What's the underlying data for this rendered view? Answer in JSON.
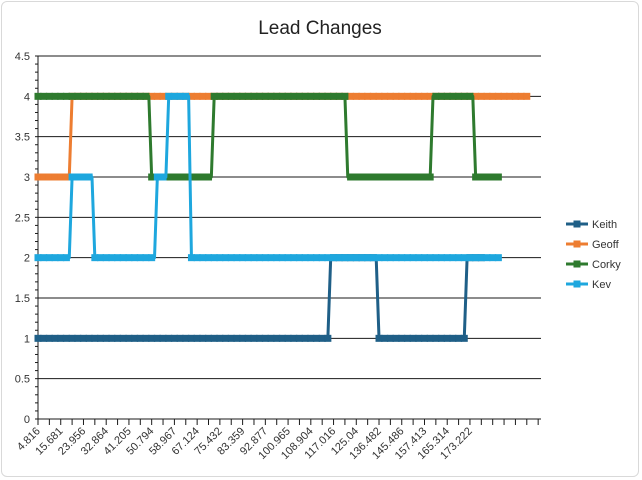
{
  "chart_data": {
    "type": "line",
    "title": "Lead Changes",
    "xlabel": "",
    "ylabel": "",
    "ylim": [
      0,
      4.5
    ],
    "ystep": 0.5,
    "y_ticks": [
      "0",
      "0.5",
      "1",
      "1.5",
      "2",
      "2.5",
      "3",
      "3.5",
      "4",
      "4.5"
    ],
    "x_ticks": [
      "4.816",
      "15.681",
      "23.956",
      "32.864",
      "41.205",
      "50.794",
      "58.967",
      "67.124",
      "75.432",
      "83.359",
      "92.877",
      "100.965",
      "108.904",
      "117.016",
      "125.04",
      "136.482",
      "145.486",
      "157.413",
      "165.314",
      "173.222"
    ],
    "grid": true,
    "legend_position": "right",
    "series": [
      {
        "name": "Keith",
        "color": "#1f5f87",
        "values": [
          1,
          1,
          1,
          1,
          1,
          1,
          1,
          1,
          1,
          1,
          1,
          1,
          1,
          1,
          1,
          1,
          1,
          1,
          1,
          1,
          1,
          1,
          1,
          1,
          1,
          1,
          1,
          1,
          1,
          1,
          1,
          1,
          1,
          1,
          1,
          1,
          1,
          1,
          1,
          1,
          1,
          1,
          1,
          1,
          1,
          1,
          1,
          1,
          1,
          1,
          1,
          1,
          1,
          1,
          1,
          1,
          1,
          1,
          1,
          1,
          1,
          1,
          1,
          1,
          1,
          1,
          1,
          1,
          1,
          1,
          1,
          1,
          1,
          1,
          1,
          1,
          1,
          1,
          1,
          1,
          1,
          1,
          1,
          1,
          1,
          1,
          1,
          1,
          1,
          1,
          1,
          1,
          1,
          1,
          1,
          1,
          1,
          1,
          1,
          1,
          1,
          1,
          1,
          2,
          2,
          2,
          2,
          2,
          2,
          2,
          2,
          2,
          2,
          2,
          2,
          2,
          2,
          2,
          2,
          2,
          1,
          1,
          1,
          1,
          1,
          1,
          1,
          1,
          1,
          1,
          1,
          1,
          1,
          1,
          1,
          1,
          1,
          1,
          1,
          1,
          1,
          1,
          1,
          1,
          1,
          1,
          1,
          1,
          1,
          1,
          1,
          2,
          2,
          2,
          2,
          2,
          2
        ]
      },
      {
        "name": "Geoff",
        "color": "#ed7d31",
        "values": [
          3,
          3,
          3,
          3,
          3,
          3,
          3,
          3,
          3,
          3,
          3,
          3,
          4,
          4,
          4,
          4,
          4,
          4,
          4,
          4,
          4,
          4,
          4,
          4,
          4,
          4,
          4,
          4,
          4,
          4,
          4,
          4,
          4,
          4,
          4,
          4,
          4,
          4,
          4,
          4,
          4,
          4,
          4,
          4,
          4,
          4,
          4,
          4,
          4,
          4,
          4,
          4,
          4,
          4,
          4,
          4,
          4,
          4,
          4,
          4,
          4,
          4,
          4,
          4,
          4,
          4,
          4,
          4,
          4,
          4,
          4,
          4,
          4,
          4,
          4,
          4,
          4,
          4,
          4,
          4,
          4,
          4,
          4,
          4,
          4,
          4,
          4,
          4,
          4,
          4,
          4,
          4,
          4,
          4,
          4,
          4,
          4,
          4,
          4,
          4,
          4,
          4,
          4,
          4,
          4,
          4,
          4,
          4,
          4,
          4,
          4,
          4,
          4,
          4,
          4,
          4,
          4,
          4,
          4,
          4,
          4,
          4,
          4,
          4,
          4,
          4,
          4,
          4,
          4,
          4,
          4,
          4,
          4,
          4,
          4,
          4,
          4,
          4,
          4,
          4,
          4,
          4,
          4,
          4,
          4,
          4,
          4,
          4,
          4,
          4,
          4,
          4,
          4,
          4,
          4,
          4,
          4,
          4,
          4,
          4,
          4,
          4,
          4,
          4,
          4,
          4,
          4,
          4,
          4,
          4,
          4,
          4,
          4,
          4
        ]
      },
      {
        "name": "Corky",
        "color": "#2e7a2e",
        "values": [
          4,
          4,
          4,
          4,
          4,
          4,
          4,
          4,
          4,
          4,
          4,
          4,
          4,
          4,
          4,
          4,
          4,
          4,
          4,
          4,
          4,
          4,
          4,
          4,
          4,
          4,
          4,
          4,
          4,
          4,
          4,
          4,
          4,
          4,
          4,
          4,
          4,
          4,
          4,
          4,
          3,
          3,
          3,
          3,
          3,
          3,
          3,
          3,
          3,
          3,
          3,
          3,
          3,
          3,
          3,
          3,
          3,
          3,
          3,
          3,
          3,
          3,
          4,
          4,
          4,
          4,
          4,
          4,
          4,
          4,
          4,
          4,
          4,
          4,
          4,
          4,
          4,
          4,
          4,
          4,
          4,
          4,
          4,
          4,
          4,
          4,
          4,
          4,
          4,
          4,
          4,
          4,
          4,
          4,
          4,
          4,
          4,
          4,
          4,
          4,
          4,
          4,
          4,
          4,
          4,
          4,
          4,
          4,
          4,
          3,
          3,
          3,
          3,
          3,
          3,
          3,
          3,
          3,
          3,
          3,
          3,
          3,
          3,
          3,
          3,
          3,
          3,
          3,
          3,
          3,
          3,
          3,
          3,
          3,
          3,
          3,
          3,
          3,
          3,
          4,
          4,
          4,
          4,
          4,
          4,
          4,
          4,
          4,
          4,
          4,
          4,
          4,
          4,
          4,
          3,
          3,
          3,
          3,
          3,
          3,
          3,
          3,
          3
        ]
      },
      {
        "name": "Kev",
        "color": "#1ea7de",
        "values": [
          2,
          2,
          2,
          2,
          2,
          2,
          2,
          2,
          2,
          2,
          2,
          2,
          3,
          3,
          3,
          3,
          3,
          3,
          3,
          3,
          2,
          2,
          2,
          2,
          2,
          2,
          2,
          2,
          2,
          2,
          2,
          2,
          2,
          2,
          2,
          2,
          2,
          2,
          2,
          2,
          2,
          2,
          3,
          3,
          3,
          3,
          4,
          4,
          4,
          4,
          4,
          4,
          4,
          4,
          2,
          2,
          2,
          2,
          2,
          2,
          2,
          2,
          2,
          2,
          2,
          2,
          2,
          2,
          2,
          2,
          2,
          2,
          2,
          2,
          2,
          2,
          2,
          2,
          2,
          2,
          2,
          2,
          2,
          2,
          2,
          2,
          2,
          2,
          2,
          2,
          2,
          2,
          2,
          2,
          2,
          2,
          2,
          2,
          2,
          2,
          2,
          2,
          2,
          2,
          2,
          2,
          2,
          2,
          2,
          2,
          2,
          2,
          2,
          2,
          2,
          2,
          2,
          2,
          2,
          2,
          2,
          2,
          2,
          2,
          2,
          2,
          2,
          2,
          2,
          2,
          2,
          2,
          2,
          2,
          2,
          2,
          2,
          2,
          2,
          2,
          2,
          2,
          2,
          2,
          2,
          2,
          2,
          2,
          2,
          2,
          2,
          2,
          2,
          2,
          2,
          2,
          2,
          2,
          2,
          2,
          2,
          2,
          2
        ]
      }
    ]
  }
}
